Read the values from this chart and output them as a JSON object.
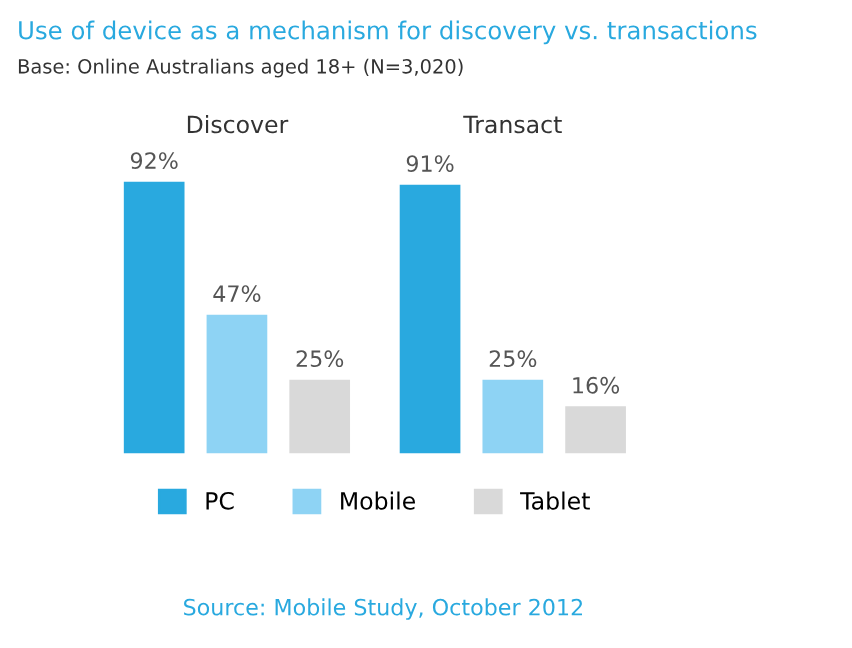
{
  "chart_data": {
    "type": "bar",
    "title": "Use of device as a mechanism for discovery vs. transactions",
    "subtitle": "Base: Online Australians aged 18+ (N=3,020)",
    "categories": [
      "Discover",
      "Transact"
    ],
    "series": [
      {
        "name": "PC",
        "color": "#29a9df",
        "values": [
          92,
          91
        ],
        "value_labels": [
          "92%",
          "91%"
        ]
      },
      {
        "name": "Mobile",
        "color": "#8ed3f4",
        "values": [
          47,
          25
        ],
        "value_labels": [
          "47%",
          "25%"
        ]
      },
      {
        "name": "Tablet",
        "color": "#d9d9d9",
        "values": [
          25,
          16
        ],
        "value_labels": [
          "25%",
          "16%"
        ]
      }
    ],
    "legend": "bottom",
    "grid": false,
    "annotations": [
      "Source: Mobile Study, October 2012"
    ]
  }
}
